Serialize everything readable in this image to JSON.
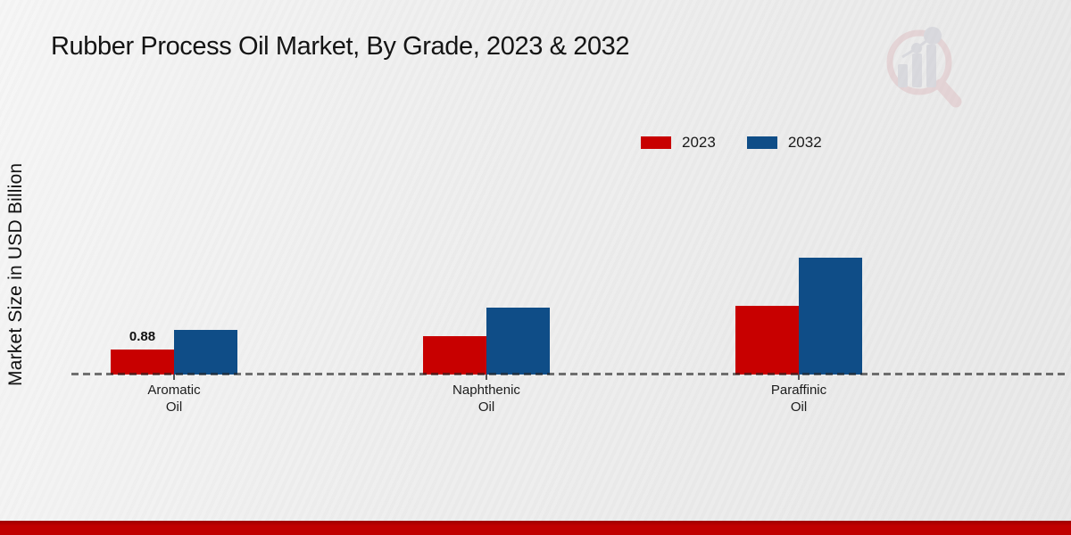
{
  "chart_data": {
    "type": "bar",
    "title": "Rubber Process Oil Market, By Grade, 2023 & 2032",
    "ylabel": "Market Size in USD Billion",
    "xlabel": "",
    "categories": [
      "Aromatic\nOil",
      "Naphthenic\nOil",
      "Paraffinic\nOil"
    ],
    "series": [
      {
        "name": "2023",
        "color": "#c80000",
        "values": [
          0.88,
          1.35,
          2.4
        ],
        "value_labels": [
          "0.88",
          "",
          ""
        ]
      },
      {
        "name": "2032",
        "color": "#0f4d87",
        "values": [
          1.55,
          2.35,
          4.1
        ],
        "value_labels": [
          "",
          "",
          ""
        ]
      }
    ],
    "ylim": [
      0,
      4.6
    ],
    "grid": false,
    "legend_position": "top-right",
    "baseline_style": "dashed"
  },
  "icons": {
    "watermark": "magnifier-bar-chart-logo"
  },
  "colors": {
    "series_2023": "#c80000",
    "series_2032": "#0f4d87",
    "footer_bar": "#c00000",
    "background": "#ebebeb",
    "axis_dash": "#555555"
  }
}
